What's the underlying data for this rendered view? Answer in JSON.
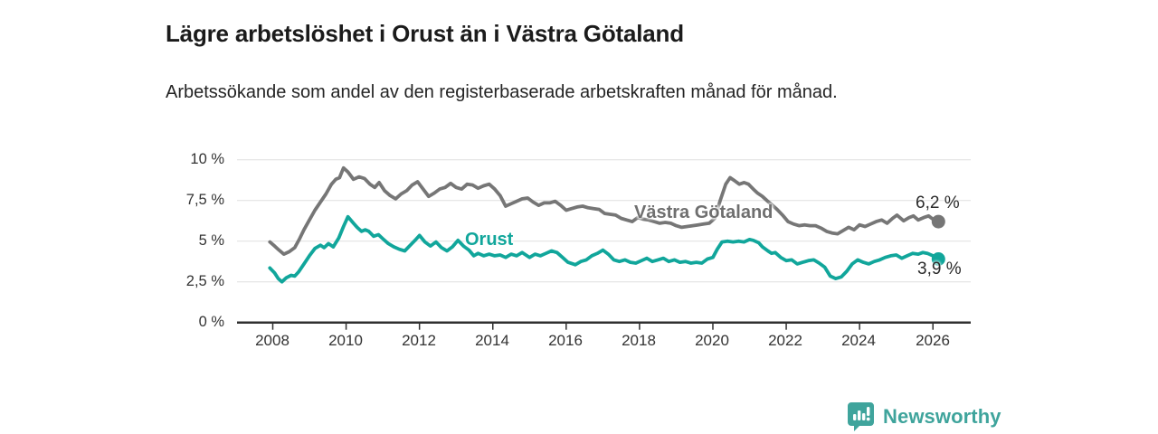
{
  "header": {
    "title": "Lägre arbetslöshet i Orust än i Västra Götaland",
    "subtitle": "Arbetssökande som andel av den registerbaserade arbetskraften månad för månad."
  },
  "branding": {
    "logo_text": "Newsworthy",
    "logo_color": "#3FA49C"
  },
  "chart_data": {
    "type": "line",
    "title": "Lägre arbetslöshet i Orust än i Västra Götaland",
    "xlabel": "",
    "ylabel": "",
    "grid": true,
    "legend_position": "inline-labels",
    "x_axis": {
      "tick_years": [
        2008,
        2010,
        2012,
        2014,
        2016,
        2018,
        2020,
        2022,
        2024,
        2026
      ],
      "tick_labels": [
        "2008",
        "2010",
        "2012",
        "2014",
        "2016",
        "2018",
        "2020",
        "2022",
        "2024",
        "2026"
      ],
      "range": [
        2007.9,
        2026.3
      ]
    },
    "y_axis": {
      "tick_values": [
        10,
        7.5,
        5,
        2.5,
        0
      ],
      "tick_labels": [
        "10 %",
        "7,5 %",
        "5 %",
        "2,5 %",
        "0 %"
      ],
      "range": [
        0,
        10
      ]
    },
    "series": [
      {
        "name": "Västra Götaland",
        "color": "#767676",
        "end_label": "6,2 %",
        "end_value": 6.2,
        "points": [
          [
            2007.92,
            4.95
          ],
          [
            2008.05,
            4.7
          ],
          [
            2008.17,
            4.45
          ],
          [
            2008.3,
            4.2
          ],
          [
            2008.45,
            4.35
          ],
          [
            2008.6,
            4.6
          ],
          [
            2008.72,
            5.1
          ],
          [
            2008.85,
            5.7
          ],
          [
            2009.0,
            6.3
          ],
          [
            2009.15,
            6.9
          ],
          [
            2009.3,
            7.4
          ],
          [
            2009.45,
            7.9
          ],
          [
            2009.6,
            8.5
          ],
          [
            2009.72,
            8.8
          ],
          [
            2009.82,
            8.9
          ],
          [
            2009.93,
            9.5
          ],
          [
            2010.05,
            9.25
          ],
          [
            2010.2,
            8.8
          ],
          [
            2010.35,
            8.95
          ],
          [
            2010.5,
            8.85
          ],
          [
            2010.65,
            8.5
          ],
          [
            2010.78,
            8.3
          ],
          [
            2010.9,
            8.6
          ],
          [
            2011.05,
            8.1
          ],
          [
            2011.2,
            7.8
          ],
          [
            2011.35,
            7.6
          ],
          [
            2011.5,
            7.9
          ],
          [
            2011.65,
            8.1
          ],
          [
            2011.8,
            8.45
          ],
          [
            2011.95,
            8.65
          ],
          [
            2012.1,
            8.2
          ],
          [
            2012.25,
            7.75
          ],
          [
            2012.4,
            7.95
          ],
          [
            2012.55,
            8.2
          ],
          [
            2012.7,
            8.3
          ],
          [
            2012.85,
            8.55
          ],
          [
            2013.0,
            8.3
          ],
          [
            2013.15,
            8.2
          ],
          [
            2013.3,
            8.5
          ],
          [
            2013.45,
            8.45
          ],
          [
            2013.6,
            8.25
          ],
          [
            2013.75,
            8.4
          ],
          [
            2013.9,
            8.5
          ],
          [
            2014.05,
            8.2
          ],
          [
            2014.2,
            7.8
          ],
          [
            2014.35,
            7.15
          ],
          [
            2014.5,
            7.3
          ],
          [
            2014.65,
            7.45
          ],
          [
            2014.8,
            7.6
          ],
          [
            2014.95,
            7.65
          ],
          [
            2015.1,
            7.4
          ],
          [
            2015.25,
            7.2
          ],
          [
            2015.4,
            7.35
          ],
          [
            2015.55,
            7.35
          ],
          [
            2015.7,
            7.45
          ],
          [
            2015.85,
            7.2
          ],
          [
            2016.0,
            6.9
          ],
          [
            2016.15,
            7.0
          ],
          [
            2016.3,
            7.1
          ],
          [
            2016.45,
            7.15
          ],
          [
            2016.6,
            7.05
          ],
          [
            2016.75,
            7.0
          ],
          [
            2016.9,
            6.95
          ],
          [
            2017.05,
            6.7
          ],
          [
            2017.2,
            6.65
          ],
          [
            2017.35,
            6.6
          ],
          [
            2017.5,
            6.4
          ],
          [
            2017.65,
            6.3
          ],
          [
            2017.8,
            6.2
          ],
          [
            2017.95,
            6.45
          ],
          [
            2018.1,
            6.35
          ],
          [
            2018.25,
            6.3
          ],
          [
            2018.4,
            6.2
          ],
          [
            2018.55,
            6.1
          ],
          [
            2018.7,
            6.15
          ],
          [
            2018.85,
            6.1
          ],
          [
            2019.0,
            5.95
          ],
          [
            2019.15,
            5.85
          ],
          [
            2019.3,
            5.9
          ],
          [
            2019.45,
            5.95
          ],
          [
            2019.6,
            6.0
          ],
          [
            2019.75,
            6.05
          ],
          [
            2019.9,
            6.1
          ],
          [
            2020.05,
            6.4
          ],
          [
            2020.2,
            7.5
          ],
          [
            2020.35,
            8.5
          ],
          [
            2020.47,
            8.9
          ],
          [
            2020.6,
            8.7
          ],
          [
            2020.72,
            8.5
          ],
          [
            2020.85,
            8.6
          ],
          [
            2020.97,
            8.5
          ],
          [
            2021.1,
            8.2
          ],
          [
            2021.22,
            7.95
          ],
          [
            2021.35,
            7.75
          ],
          [
            2021.47,
            7.5
          ],
          [
            2021.6,
            7.25
          ],
          [
            2021.75,
            6.95
          ],
          [
            2021.9,
            6.6
          ],
          [
            2022.05,
            6.2
          ],
          [
            2022.2,
            6.05
          ],
          [
            2022.35,
            5.95
          ],
          [
            2022.5,
            6.0
          ],
          [
            2022.65,
            5.95
          ],
          [
            2022.8,
            5.95
          ],
          [
            2022.95,
            5.8
          ],
          [
            2023.1,
            5.6
          ],
          [
            2023.25,
            5.5
          ],
          [
            2023.4,
            5.45
          ],
          [
            2023.55,
            5.65
          ],
          [
            2023.7,
            5.85
          ],
          [
            2023.85,
            5.7
          ],
          [
            2024.0,
            6.0
          ],
          [
            2024.15,
            5.9
          ],
          [
            2024.3,
            6.05
          ],
          [
            2024.45,
            6.2
          ],
          [
            2024.6,
            6.3
          ],
          [
            2024.75,
            6.1
          ],
          [
            2024.9,
            6.4
          ],
          [
            2025.02,
            6.6
          ],
          [
            2025.2,
            6.25
          ],
          [
            2025.35,
            6.45
          ],
          [
            2025.47,
            6.55
          ],
          [
            2025.6,
            6.3
          ],
          [
            2025.75,
            6.45
          ],
          [
            2025.88,
            6.55
          ],
          [
            2026.0,
            6.35
          ],
          [
            2026.15,
            6.2
          ]
        ]
      },
      {
        "name": "Orust",
        "color": "#11A69B",
        "end_label": "3,9 %",
        "end_value": 3.9,
        "points": [
          [
            2007.92,
            3.35
          ],
          [
            2008.05,
            3.05
          ],
          [
            2008.15,
            2.7
          ],
          [
            2008.25,
            2.5
          ],
          [
            2008.37,
            2.75
          ],
          [
            2008.5,
            2.9
          ],
          [
            2008.6,
            2.85
          ],
          [
            2008.7,
            3.1
          ],
          [
            2008.85,
            3.6
          ],
          [
            2009.0,
            4.1
          ],
          [
            2009.15,
            4.55
          ],
          [
            2009.3,
            4.75
          ],
          [
            2009.4,
            4.6
          ],
          [
            2009.52,
            4.85
          ],
          [
            2009.65,
            4.65
          ],
          [
            2009.8,
            5.2
          ],
          [
            2009.93,
            5.9
          ],
          [
            2010.05,
            6.5
          ],
          [
            2010.2,
            6.1
          ],
          [
            2010.3,
            5.85
          ],
          [
            2010.42,
            5.6
          ],
          [
            2010.52,
            5.7
          ],
          [
            2010.62,
            5.6
          ],
          [
            2010.75,
            5.3
          ],
          [
            2010.88,
            5.4
          ],
          [
            2011.0,
            5.15
          ],
          [
            2011.15,
            4.85
          ],
          [
            2011.3,
            4.65
          ],
          [
            2011.45,
            4.5
          ],
          [
            2011.6,
            4.4
          ],
          [
            2011.75,
            4.75
          ],
          [
            2011.9,
            5.1
          ],
          [
            2012.0,
            5.35
          ],
          [
            2012.15,
            4.95
          ],
          [
            2012.3,
            4.7
          ],
          [
            2012.45,
            4.95
          ],
          [
            2012.6,
            4.6
          ],
          [
            2012.75,
            4.4
          ],
          [
            2012.9,
            4.65
          ],
          [
            2013.05,
            5.05
          ],
          [
            2013.2,
            4.7
          ],
          [
            2013.35,
            4.45
          ],
          [
            2013.48,
            4.1
          ],
          [
            2013.6,
            4.25
          ],
          [
            2013.75,
            4.1
          ],
          [
            2013.9,
            4.2
          ],
          [
            2014.05,
            4.1
          ],
          [
            2014.2,
            4.15
          ],
          [
            2014.35,
            4.0
          ],
          [
            2014.5,
            4.2
          ],
          [
            2014.65,
            4.1
          ],
          [
            2014.8,
            4.3
          ],
          [
            2015.0,
            4.0
          ],
          [
            2015.15,
            4.2
          ],
          [
            2015.3,
            4.1
          ],
          [
            2015.45,
            4.25
          ],
          [
            2015.6,
            4.4
          ],
          [
            2015.75,
            4.3
          ],
          [
            2015.9,
            4.0
          ],
          [
            2016.05,
            3.7
          ],
          [
            2016.25,
            3.55
          ],
          [
            2016.4,
            3.75
          ],
          [
            2016.55,
            3.85
          ],
          [
            2016.7,
            4.1
          ],
          [
            2016.85,
            4.25
          ],
          [
            2017.0,
            4.45
          ],
          [
            2017.15,
            4.2
          ],
          [
            2017.3,
            3.85
          ],
          [
            2017.45,
            3.75
          ],
          [
            2017.6,
            3.85
          ],
          [
            2017.75,
            3.7
          ],
          [
            2017.9,
            3.65
          ],
          [
            2018.05,
            3.8
          ],
          [
            2018.2,
            3.95
          ],
          [
            2018.35,
            3.75
          ],
          [
            2018.5,
            3.85
          ],
          [
            2018.65,
            3.95
          ],
          [
            2018.8,
            3.75
          ],
          [
            2018.95,
            3.85
          ],
          [
            2019.1,
            3.7
          ],
          [
            2019.25,
            3.75
          ],
          [
            2019.4,
            3.65
          ],
          [
            2019.55,
            3.7
          ],
          [
            2019.7,
            3.65
          ],
          [
            2019.85,
            3.9
          ],
          [
            2020.0,
            4.0
          ],
          [
            2020.12,
            4.5
          ],
          [
            2020.25,
            4.95
          ],
          [
            2020.4,
            5.0
          ],
          [
            2020.55,
            4.95
          ],
          [
            2020.7,
            5.0
          ],
          [
            2020.85,
            4.95
          ],
          [
            2021.0,
            5.1
          ],
          [
            2021.1,
            5.05
          ],
          [
            2021.25,
            4.9
          ],
          [
            2021.35,
            4.65
          ],
          [
            2021.5,
            4.4
          ],
          [
            2021.6,
            4.25
          ],
          [
            2021.7,
            4.3
          ],
          [
            2021.85,
            4.0
          ],
          [
            2022.0,
            3.8
          ],
          [
            2022.15,
            3.85
          ],
          [
            2022.3,
            3.6
          ],
          [
            2022.45,
            3.7
          ],
          [
            2022.6,
            3.8
          ],
          [
            2022.75,
            3.85
          ],
          [
            2022.9,
            3.65
          ],
          [
            2023.05,
            3.4
          ],
          [
            2023.2,
            2.85
          ],
          [
            2023.35,
            2.7
          ],
          [
            2023.5,
            2.8
          ],
          [
            2023.65,
            3.15
          ],
          [
            2023.8,
            3.6
          ],
          [
            2023.95,
            3.85
          ],
          [
            2024.1,
            3.7
          ],
          [
            2024.25,
            3.6
          ],
          [
            2024.4,
            3.75
          ],
          [
            2024.55,
            3.85
          ],
          [
            2024.7,
            4.0
          ],
          [
            2024.85,
            4.1
          ],
          [
            2025.0,
            4.15
          ],
          [
            2025.15,
            3.95
          ],
          [
            2025.3,
            4.1
          ],
          [
            2025.45,
            4.25
          ],
          [
            2025.6,
            4.2
          ],
          [
            2025.72,
            4.3
          ],
          [
            2025.85,
            4.25
          ],
          [
            2026.0,
            4.1
          ],
          [
            2026.15,
            3.9
          ]
        ]
      }
    ]
  }
}
